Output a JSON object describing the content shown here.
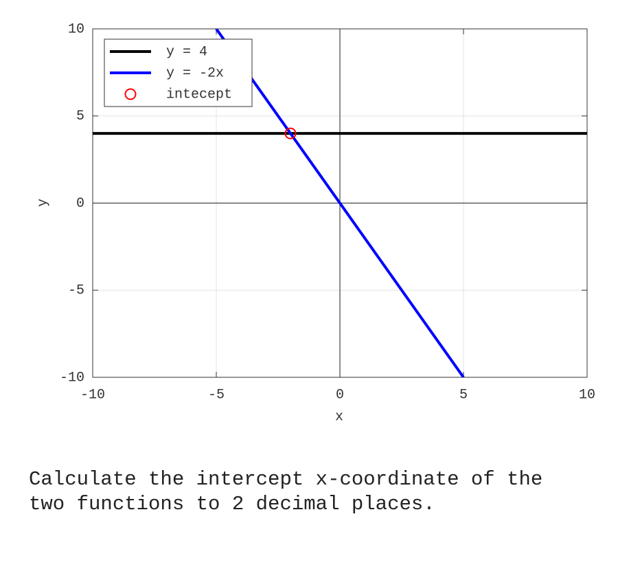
{
  "chart_data": {
    "type": "line",
    "xlabel": "x",
    "ylabel": "y",
    "xlim": [
      -10,
      10
    ],
    "ylim": [
      -10,
      10
    ],
    "xticks": [
      -10,
      -5,
      0,
      5,
      10
    ],
    "yticks": [
      -10,
      -5,
      0,
      5,
      10
    ],
    "grid": true,
    "legend": "upper left",
    "series": [
      {
        "name": "y = 4",
        "color": "#000000",
        "x": [
          -10,
          10
        ],
        "values": [
          4,
          4
        ]
      },
      {
        "name": "y = -2x",
        "color": "#0000ff",
        "x": [
          -5,
          5
        ],
        "values": [
          10,
          -10
        ]
      },
      {
        "name": "intecept",
        "color": "#ff0000",
        "type": "scatter",
        "x": [
          -2
        ],
        "values": [
          4
        ]
      }
    ]
  },
  "question": "Calculate the intercept x-coordinate of the two functions to 2 decimal places."
}
